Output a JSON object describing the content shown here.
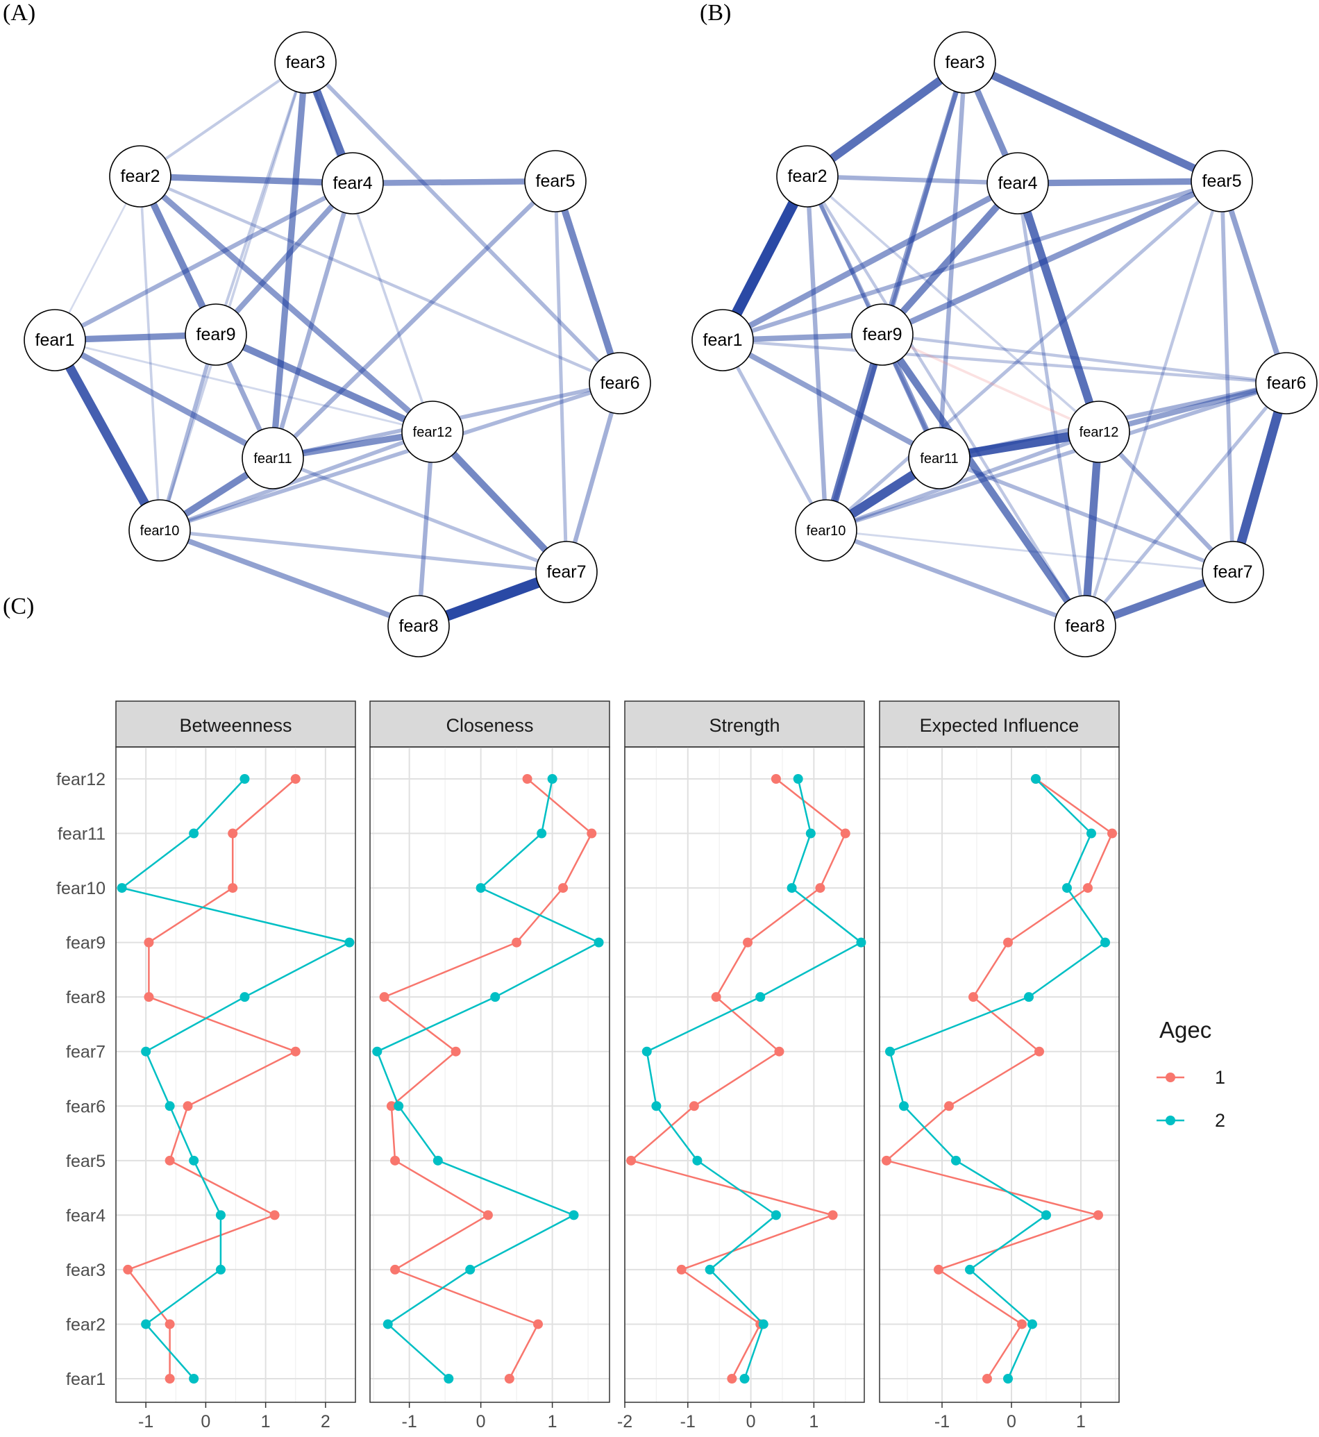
{
  "panel_labels": {
    "a": "(A)",
    "b": "(B)",
    "c": "(C)"
  },
  "colors": {
    "edge_positive": "#1f3fa0",
    "edge_negative": "#f08080",
    "series_1": "#F8766D",
    "series_2": "#00BFC4",
    "strip_bg": "#d9d9d9",
    "grid": "#e6e6e6"
  },
  "networks": {
    "nodes": [
      "fear1",
      "fear2",
      "fear3",
      "fear4",
      "fear5",
      "fear6",
      "fear7",
      "fear8",
      "fear9",
      "fear10",
      "fear11",
      "fear12"
    ],
    "A": {
      "edges": [
        [
          "fear3",
          "fear4",
          0.75
        ],
        [
          "fear3",
          "fear2",
          0.18
        ],
        [
          "fear3",
          "fear9",
          0.18
        ],
        [
          "fear3",
          "fear10",
          0.15
        ],
        [
          "fear3",
          "fear11",
          0.55
        ],
        [
          "fear3",
          "fear6",
          0.3
        ],
        [
          "fear3",
          "fear12",
          0.15
        ],
        [
          "fear2",
          "fear4",
          0.55
        ],
        [
          "fear2",
          "fear9",
          0.6
        ],
        [
          "fear2",
          "fear12",
          0.5
        ],
        [
          "fear2",
          "fear6",
          0.2
        ],
        [
          "fear2",
          "fear1",
          0.08
        ],
        [
          "fear2",
          "fear10",
          0.15
        ],
        [
          "fear4",
          "fear5",
          0.5
        ],
        [
          "fear4",
          "fear1",
          0.35
        ],
        [
          "fear4",
          "fear9",
          0.45
        ],
        [
          "fear4",
          "fear11",
          0.35
        ],
        [
          "fear5",
          "fear6",
          0.6
        ],
        [
          "fear5",
          "fear11",
          0.35
        ],
        [
          "fear5",
          "fear7",
          0.25
        ],
        [
          "fear1",
          "fear9",
          0.55
        ],
        [
          "fear1",
          "fear10",
          0.85
        ],
        [
          "fear1",
          "fear11",
          0.5
        ],
        [
          "fear1",
          "fear12",
          0.1
        ],
        [
          "fear9",
          "fear12",
          0.6
        ],
        [
          "fear9",
          "fear11",
          0.4
        ],
        [
          "fear9",
          "fear10",
          0.3
        ],
        [
          "fear11",
          "fear12",
          0.55
        ],
        [
          "fear11",
          "fear10",
          0.6
        ],
        [
          "fear11",
          "fear6",
          0.3
        ],
        [
          "fear11",
          "fear7",
          0.25
        ],
        [
          "fear12",
          "fear7",
          0.6
        ],
        [
          "fear12",
          "fear8",
          0.35
        ],
        [
          "fear12",
          "fear10",
          0.3
        ],
        [
          "fear6",
          "fear7",
          0.35
        ],
        [
          "fear6",
          "fear10",
          0.3
        ],
        [
          "fear10",
          "fear8",
          0.45
        ],
        [
          "fear10",
          "fear7",
          0.25
        ],
        [
          "fear7",
          "fear8",
          1.0
        ]
      ]
    },
    "B": {
      "edges": [
        [
          "fear3",
          "fear2",
          0.75
        ],
        [
          "fear3",
          "fear5",
          0.7
        ],
        [
          "fear3",
          "fear4",
          0.55
        ],
        [
          "fear3",
          "fear9",
          0.45
        ],
        [
          "fear3",
          "fear11",
          0.35
        ],
        [
          "fear3",
          "fear10",
          0.35
        ],
        [
          "fear2",
          "fear1",
          1.0
        ],
        [
          "fear2",
          "fear4",
          0.35
        ],
        [
          "fear2",
          "fear9",
          0.35
        ],
        [
          "fear2",
          "fear11",
          0.25
        ],
        [
          "fear2",
          "fear12",
          0.15
        ],
        [
          "fear2",
          "fear10",
          0.35
        ],
        [
          "fear2",
          "fear8",
          0.2
        ],
        [
          "fear4",
          "fear5",
          0.55
        ],
        [
          "fear4",
          "fear12",
          0.75
        ],
        [
          "fear4",
          "fear9",
          0.6
        ],
        [
          "fear4",
          "fear1",
          0.5
        ],
        [
          "fear4",
          "fear8",
          0.25
        ],
        [
          "fear5",
          "fear9",
          0.5
        ],
        [
          "fear5",
          "fear1",
          0.35
        ],
        [
          "fear5",
          "fear6",
          0.45
        ],
        [
          "fear5",
          "fear7",
          0.3
        ],
        [
          "fear5",
          "fear10",
          0.25
        ],
        [
          "fear5",
          "fear8",
          0.2
        ],
        [
          "fear1",
          "fear9",
          0.45
        ],
        [
          "fear1",
          "fear11",
          0.45
        ],
        [
          "fear1",
          "fear10",
          0.25
        ],
        [
          "fear1",
          "fear6",
          0.2
        ],
        [
          "fear9",
          "fear10",
          0.7
        ],
        [
          "fear9",
          "fear8",
          0.65
        ],
        [
          "fear9",
          "fear11",
          0.5
        ],
        [
          "fear9",
          "fear6",
          0.2
        ],
        [
          "fear9",
          "fear12",
          -0.15
        ],
        [
          "fear11",
          "fear12",
          0.85
        ],
        [
          "fear11",
          "fear10",
          0.85
        ],
        [
          "fear11",
          "fear6",
          0.35
        ],
        [
          "fear11",
          "fear7",
          0.3
        ],
        [
          "fear12",
          "fear8",
          0.7
        ],
        [
          "fear12",
          "fear6",
          0.45
        ],
        [
          "fear12",
          "fear10",
          0.3
        ],
        [
          "fear12",
          "fear7",
          0.35
        ],
        [
          "fear6",
          "fear7",
          0.85
        ],
        [
          "fear6",
          "fear10",
          0.3
        ],
        [
          "fear6",
          "fear8",
          0.25
        ],
        [
          "fear10",
          "fear8",
          0.35
        ],
        [
          "fear10",
          "fear7",
          0.1
        ],
        [
          "fear8",
          "fear7",
          0.7
        ]
      ]
    }
  },
  "chart_data": {
    "type": "line",
    "legend_title": "Agec",
    "panels": [
      "Betweenness",
      "Closeness",
      "Strength",
      "Expected Influence"
    ],
    "categories": [
      "fear1",
      "fear2",
      "fear3",
      "fear4",
      "fear5",
      "fear6",
      "fear7",
      "fear8",
      "fear9",
      "fear10",
      "fear11",
      "fear12"
    ],
    "x_ticks": [
      [
        "-1",
        "0",
        "1",
        "2"
      ],
      [
        "-1",
        "0",
        "1"
      ],
      [
        "-2",
        "-1",
        "0",
        "1"
      ],
      [
        "-1",
        "0",
        "1"
      ]
    ],
    "xlim": [
      [
        -1.5,
        2.5
      ],
      [
        -1.55,
        1.8
      ],
      [
        -2,
        1.8
      ],
      [
        -1.9,
        1.55
      ]
    ],
    "series": [
      {
        "name": "1",
        "values": [
          [
            -0.6,
            -0.6,
            -1.3,
            1.15,
            -0.6,
            -0.3,
            1.5,
            -0.95,
            -0.95,
            0.45,
            0.45,
            1.5
          ],
          [
            0.4,
            0.8,
            -1.2,
            0.1,
            -1.2,
            -1.25,
            -0.35,
            -1.35,
            0.5,
            1.15,
            1.55,
            0.65
          ],
          [
            -0.3,
            0.15,
            -1.1,
            1.3,
            -1.9,
            -0.9,
            0.45,
            -0.55,
            -0.05,
            1.1,
            1.5,
            0.4
          ],
          [
            -0.35,
            0.15,
            -1.05,
            1.25,
            -1.8,
            -0.9,
            0.4,
            -0.55,
            -0.05,
            1.1,
            1.45,
            0.35
          ]
        ]
      },
      {
        "name": "2",
        "values": [
          [
            -0.2,
            -1.0,
            0.25,
            0.25,
            -0.2,
            -0.6,
            -1.0,
            0.65,
            2.4,
            -1.4,
            -0.2,
            0.65
          ],
          [
            -0.45,
            -1.3,
            -0.15,
            1.3,
            -0.6,
            -1.15,
            -1.45,
            0.2,
            1.65,
            0.0,
            0.85,
            1.0
          ],
          [
            -0.1,
            0.2,
            -0.65,
            0.4,
            -0.85,
            -1.5,
            -1.65,
            0.15,
            1.75,
            0.65,
            0.95,
            0.75
          ],
          [
            -0.05,
            0.3,
            -0.6,
            0.5,
            -0.8,
            -1.55,
            -1.75,
            0.25,
            1.35,
            0.8,
            1.15,
            0.35
          ]
        ]
      }
    ]
  }
}
